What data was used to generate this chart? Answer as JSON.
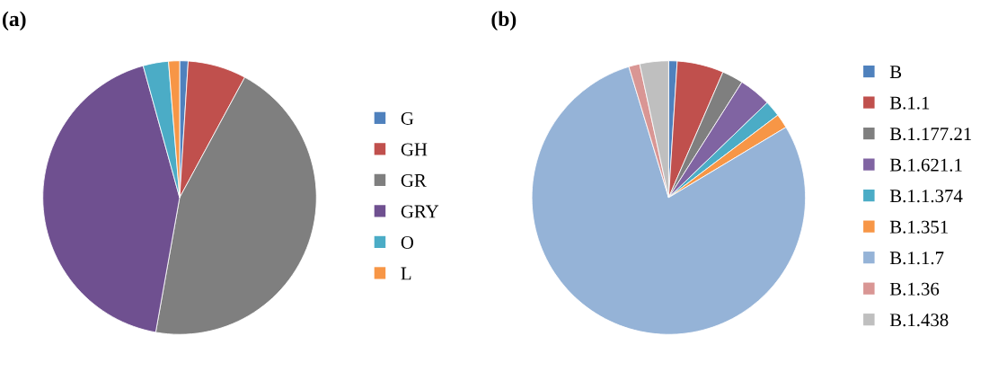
{
  "chart_data": [
    {
      "type": "pie",
      "title": "(a)",
      "legend": "right",
      "categories": [
        "G",
        "GH",
        "GR",
        "GRY",
        "O",
        "L"
      ],
      "values": [
        1.0,
        6.9,
        44.9,
        42.9,
        3.0,
        1.3
      ],
      "colors": [
        "#4f81bd",
        "#c0504d",
        "#7f7f7f",
        "#6f5090",
        "#4bacc6",
        "#f79646"
      ]
    },
    {
      "type": "pie",
      "title": "(b)",
      "legend": "right",
      "categories": [
        "B",
        "B.1.1",
        "B.1.177.21",
        "B.1.621.1",
        "B.1.1.374",
        "B.1.351",
        "B.1.1.7",
        "B.1.36",
        "B.1.438"
      ],
      "values": [
        1.0,
        5.5,
        2.5,
        3.8,
        1.9,
        1.7,
        78.9,
        1.3,
        3.4
      ],
      "colors": [
        "#4f81bd",
        "#c0504d",
        "#7f7f7f",
        "#8064a2",
        "#4bacc6",
        "#f79646",
        "#95b3d7",
        "#d99694",
        "#bfbfbf"
      ]
    }
  ]
}
